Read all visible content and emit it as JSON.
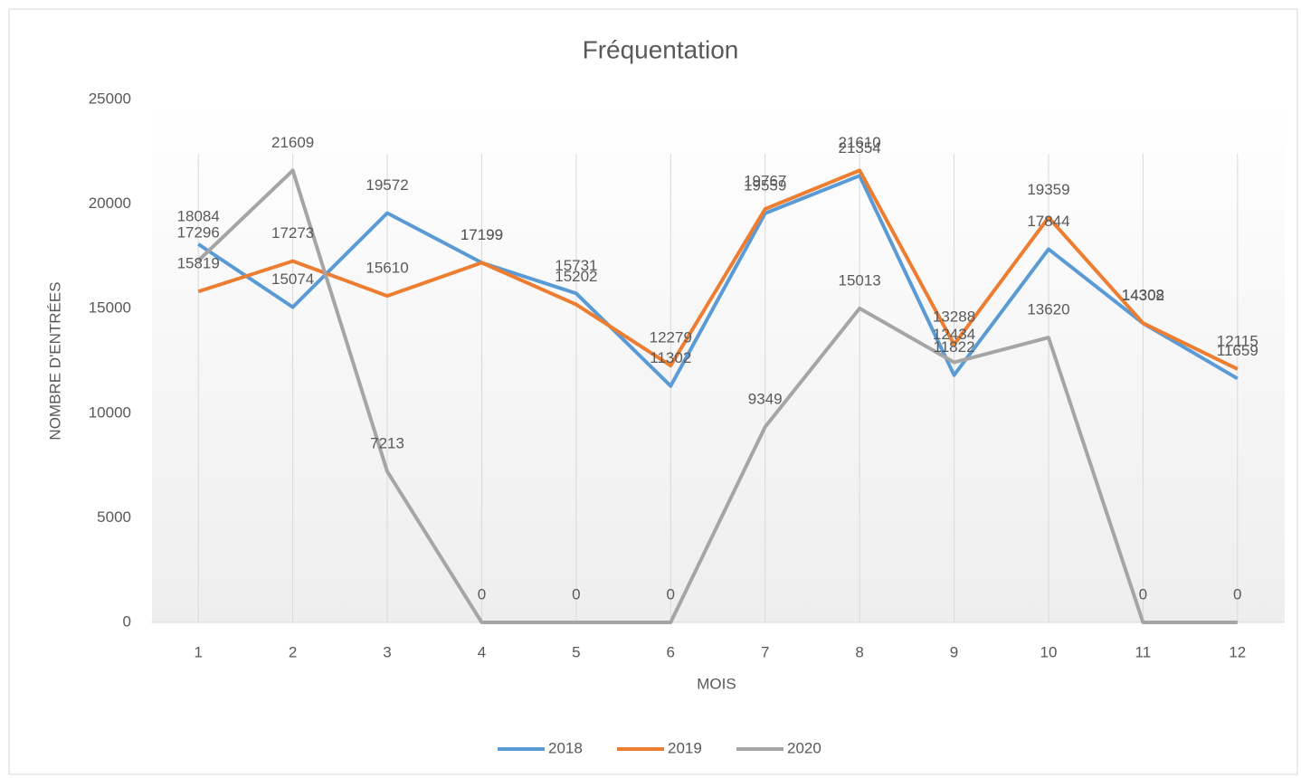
{
  "chart_data": {
    "type": "line",
    "title": "Fréquentation",
    "xlabel": "MOIS",
    "ylabel": "NOMBRE D'ENTRÉES",
    "categories": [
      "1",
      "2",
      "3",
      "4",
      "5",
      "6",
      "7",
      "8",
      "9",
      "10",
      "11",
      "12"
    ],
    "series": [
      {
        "name": "2018",
        "color": "#5b9bd5",
        "values": [
          18084,
          15074,
          19572,
          17199,
          15731,
          11302,
          19559,
          21354,
          11822,
          17844,
          14302,
          11659
        ]
      },
      {
        "name": "2019",
        "color": "#ed7d31",
        "values": [
          15819,
          17273,
          15610,
          17199,
          15202,
          12279,
          19767,
          21610,
          13288,
          19359,
          14308,
          12115
        ]
      },
      {
        "name": "2020",
        "color": "#a5a5a5",
        "values": [
          17296,
          21609,
          7213,
          0,
          0,
          0,
          9349,
          15013,
          12434,
          13620,
          0,
          0
        ]
      }
    ],
    "ylim": [
      0,
      25000
    ],
    "yticks": [
      0,
      5000,
      10000,
      15000,
      20000,
      25000
    ],
    "legend": "bottom"
  }
}
